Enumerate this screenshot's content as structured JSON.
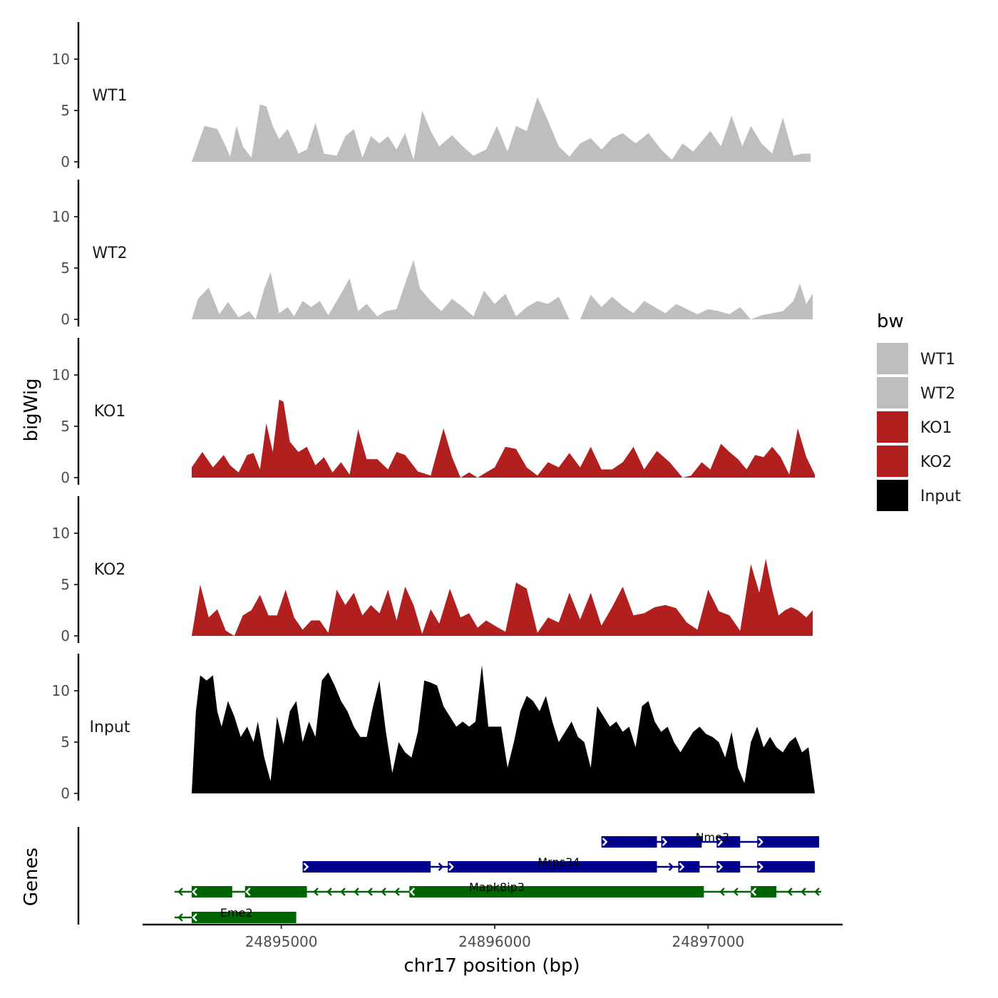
{
  "chart_data": {
    "type": "area",
    "ylabel": "bigWig",
    "genes_label": "Genes",
    "xlabel": "chr17 position (bp)",
    "xlim": [
      24894350,
      24897630
    ],
    "xticks": [
      24895000,
      24896000,
      24897000
    ],
    "xtick_labels": [
      "24895000",
      "24896000",
      "24897000"
    ],
    "ylim": [
      0,
      14
    ],
    "yticks": [
      0,
      5,
      10
    ],
    "ytick_labels": [
      "0",
      "5",
      "10"
    ],
    "legend": {
      "title": "bw",
      "position": "right",
      "entries": [
        {
          "label": "WT1",
          "color": "#bebebe"
        },
        {
          "label": "WT2",
          "color": "#bebebe"
        },
        {
          "label": "KO1",
          "color": "#b21f1f"
        },
        {
          "label": "KO2",
          "color": "#b21f1f"
        },
        {
          "label": "Input",
          "color": "#000000"
        }
      ]
    },
    "tracks": [
      {
        "name": "WT1",
        "color": "#bebebe",
        "x": [
          24894580,
          24894640,
          24894700,
          24894740,
          24894760,
          24894790,
          24894820,
          24894860,
          24894900,
          24894930,
          24894960,
          24894990,
          24895030,
          24895080,
          24895120,
          24895160,
          24895200,
          24895260,
          24895300,
          24895340,
          24895380,
          24895420,
          24895460,
          24895500,
          24895540,
          24895580,
          24895620,
          24895660,
          24895700,
          24895740,
          24895800,
          24895850,
          24895900,
          24895960,
          24896010,
          24896060,
          24896100,
          24896150,
          24896200,
          24896250,
          24896300,
          24896350,
          24896400,
          24896450,
          24896500,
          24896550,
          24896600,
          24896660,
          24896720,
          24896780,
          24896830,
          24896880,
          24896930,
          24896970,
          24897010,
          24897060,
          24897110,
          24897160,
          24897200,
          24897250,
          24897300,
          24897350,
          24897400,
          24897440,
          24897480
        ],
        "y": [
          0,
          3.5,
          3.2,
          1.5,
          0.5,
          3.5,
          1.5,
          0.4,
          5.6,
          5.4,
          3.5,
          2.2,
          3.2,
          0.8,
          1.2,
          3.8,
          0.8,
          0.6,
          2.5,
          3.2,
          0.4,
          2.5,
          1.8,
          2.5,
          1.2,
          2.8,
          0.2,
          5.0,
          3.0,
          1.5,
          2.6,
          1.5,
          0.6,
          1.2,
          3.5,
          1.0,
          3.5,
          3.0,
          6.3,
          4.0,
          1.5,
          0.5,
          1.8,
          2.3,
          1.2,
          2.3,
          2.8,
          1.8,
          2.8,
          1.2,
          0.2,
          1.8,
          1.0,
          2.0,
          3.0,
          1.5,
          4.5,
          1.5,
          3.5,
          1.8,
          0.8,
          4.3,
          0.6,
          0.8,
          0.8
        ]
      },
      {
        "name": "WT2",
        "color": "#bebebe",
        "x": [
          24894580,
          24894610,
          24894660,
          24894710,
          24894750,
          24894800,
          24894850,
          24894880,
          24894920,
          24894950,
          24894990,
          24895030,
          24895060,
          24895100,
          24895140,
          24895180,
          24895220,
          24895280,
          24895320,
          24895360,
          24895400,
          24895450,
          24895490,
          24895540,
          24895580,
          24895620,
          24895650,
          24895700,
          24895750,
          24895800,
          24895850,
          24895900,
          24895950,
          24896000,
          24896050,
          24896100,
          24896150,
          24896200,
          24896250,
          24896300,
          24896350,
          24896400,
          24896450,
          24896500,
          24896550,
          24896600,
          24896650,
          24896700,
          24896750,
          24896800,
          24896850,
          24896900,
          24896950,
          24897000,
          24897050,
          24897100,
          24897150,
          24897200,
          24897250,
          24897300,
          24897350,
          24897400,
          24897430,
          24897460,
          24897490
        ],
        "y": [
          0,
          2.0,
          3.1,
          0.5,
          1.7,
          0.2,
          0.8,
          0,
          3.0,
          4.6,
          0.6,
          1.2,
          0.3,
          1.8,
          1.2,
          1.8,
          0.4,
          2.5,
          4.0,
          0.8,
          1.5,
          0.3,
          0.8,
          1.0,
          3.5,
          5.8,
          3.0,
          1.8,
          0.8,
          2.0,
          1.2,
          0.3,
          2.8,
          1.5,
          2.5,
          0.3,
          1.2,
          1.8,
          1.5,
          2.2,
          0,
          0,
          2.4,
          1.2,
          2.2,
          1.3,
          0.6,
          1.8,
          1.2,
          0.6,
          1.5,
          1.0,
          0.5,
          1.0,
          0.8,
          0.5,
          1.2,
          0,
          0.4,
          0.6,
          0.8,
          1.8,
          3.5,
          1.5,
          2.5
        ]
      },
      {
        "name": "KO1",
        "color": "#b21f1f",
        "x": [
          24894580,
          24894630,
          24894680,
          24894730,
          24894760,
          24894800,
          24894840,
          24894870,
          24894900,
          24894930,
          24894960,
          24894990,
          24895010,
          24895040,
          24895080,
          24895120,
          24895160,
          24895200,
          24895240,
          24895280,
          24895320,
          24895360,
          24895400,
          24895450,
          24895500,
          24895540,
          24895580,
          24895640,
          24895700,
          24895760,
          24895800,
          24895840,
          24895880,
          24895920,
          24895960,
          24896000,
          24896050,
          24896100,
          24896150,
          24896200,
          24896250,
          24896300,
          24896350,
          24896400,
          24896450,
          24896500,
          24896550,
          24896600,
          24896650,
          24896700,
          24896760,
          24896820,
          24896880,
          24896920,
          24896970,
          24897010,
          24897060,
          24897100,
          24897140,
          24897180,
          24897220,
          24897260,
          24897300,
          24897340,
          24897380,
          24897420,
          24897460,
          24897500
        ],
        "y": [
          1.0,
          2.5,
          1.0,
          2.2,
          1.2,
          0.5,
          2.2,
          2.4,
          0.8,
          5.3,
          2.5,
          7.6,
          7.4,
          3.5,
          2.5,
          3.0,
          1.2,
          2.0,
          0.5,
          1.5,
          0.3,
          4.7,
          1.8,
          1.8,
          0.8,
          2.5,
          2.2,
          0.6,
          0.2,
          4.8,
          2.0,
          0,
          0.5,
          0,
          0.5,
          1.0,
          3.0,
          2.8,
          1.0,
          0.2,
          1.5,
          1.0,
          2.4,
          1.0,
          3.0,
          0.8,
          0.8,
          1.5,
          3.0,
          0.8,
          2.6,
          1.5,
          0,
          0.2,
          1.5,
          0.8,
          3.3,
          2.5,
          1.8,
          0.8,
          2.2,
          2.0,
          3.0,
          2.0,
          0.3,
          4.8,
          2.0,
          0.3
        ]
      },
      {
        "name": "KO2",
        "color": "#b21f1f",
        "x": [
          24894580,
          24894620,
          24894660,
          24894700,
          24894740,
          24894780,
          24894820,
          24894860,
          24894900,
          24894940,
          24894980,
          24895020,
          24895060,
          24895100,
          24895140,
          24895180,
          24895220,
          24895260,
          24895300,
          24895340,
          24895380,
          24895420,
          24895460,
          24895500,
          24895540,
          24895580,
          24895620,
          24895660,
          24895700,
          24895740,
          24895790,
          24895840,
          24895880,
          24895920,
          24895960,
          24896000,
          24896050,
          24896100,
          24896150,
          24896200,
          24896250,
          24896300,
          24896350,
          24896400,
          24896450,
          24896500,
          24896550,
          24896600,
          24896650,
          24896700,
          24896750,
          24896800,
          24896850,
          24896900,
          24896950,
          24897000,
          24897050,
          24897100,
          24897150,
          24897200,
          24897240,
          24897270,
          24897300,
          24897330,
          24897360,
          24897390,
          24897420,
          24897460,
          24897490
        ],
        "y": [
          0,
          5.0,
          1.8,
          2.6,
          0.5,
          0,
          2.0,
          2.5,
          4.0,
          2.0,
          2.0,
          4.5,
          1.8,
          0.6,
          1.5,
          1.5,
          0.3,
          4.5,
          3.0,
          4.2,
          2.0,
          3.0,
          2.2,
          4.5,
          1.5,
          4.8,
          3.0,
          0.2,
          2.6,
          1.2,
          4.6,
          1.8,
          2.2,
          0.8,
          1.5,
          1.0,
          0.4,
          5.2,
          4.6,
          0.3,
          1.8,
          1.3,
          4.2,
          1.6,
          4.2,
          1.0,
          2.8,
          4.8,
          2.0,
          2.2,
          2.8,
          3.0,
          2.7,
          1.3,
          0.6,
          4.5,
          2.4,
          2.0,
          0.5,
          7.0,
          4.2,
          7.5,
          4.5,
          2.0,
          2.5,
          2.8,
          2.5,
          1.8,
          2.5
        ]
      },
      {
        "name": "Input",
        "color": "#000000",
        "x": [
          24894580,
          24894600,
          24894620,
          24894650,
          24894680,
          24894700,
          24894720,
          24894750,
          24894780,
          24894810,
          24894840,
          24894870,
          24894890,
          24894920,
          24894950,
          24894980,
          24895010,
          24895040,
          24895070,
          24895100,
          24895130,
          24895160,
          24895190,
          24895220,
          24895250,
          24895280,
          24895310,
          24895340,
          24895370,
          24895400,
          24895430,
          24895460,
          24895490,
          24895520,
          24895550,
          24895580,
          24895610,
          24895640,
          24895670,
          24895700,
          24895730,
          24895760,
          24895790,
          24895820,
          24895850,
          24895880,
          24895910,
          24895940,
          24895970,
          24896000,
          24896030,
          24896060,
          24896090,
          24896120,
          24896150,
          24896180,
          24896210,
          24896240,
          24896270,
          24896300,
          24896330,
          24896360,
          24896390,
          24896420,
          24896450,
          24896480,
          24896510,
          24896540,
          24896570,
          24896600,
          24896630,
          24896660,
          24896690,
          24896720,
          24896750,
          24896780,
          24896810,
          24896840,
          24896870,
          24896900,
          24896930,
          24896960,
          24896990,
          24897020,
          24897050,
          24897080,
          24897110,
          24897140,
          24897170,
          24897200,
          24897230,
          24897260,
          24897290,
          24897320,
          24897350,
          24897380,
          24897410,
          24897440,
          24897470,
          24897500
        ],
        "y": [
          0,
          8.0,
          11.5,
          11.0,
          11.5,
          8.0,
          6.5,
          9.0,
          7.5,
          5.5,
          6.5,
          5.0,
          7.0,
          3.5,
          1.2,
          7.5,
          4.8,
          8.0,
          9.0,
          5.0,
          7.0,
          5.5,
          11.0,
          11.8,
          10.5,
          9.0,
          8.0,
          6.5,
          5.5,
          5.5,
          8.5,
          11.0,
          6.0,
          2.0,
          5.0,
          4.0,
          3.5,
          6.0,
          11.0,
          10.8,
          10.5,
          8.5,
          7.5,
          6.5,
          7.0,
          6.5,
          7.0,
          12.5,
          6.5,
          6.5,
          6.5,
          2.5,
          5.0,
          8.0,
          9.5,
          9.0,
          8.0,
          9.5,
          7.0,
          5.0,
          6.0,
          7.0,
          5.5,
          5.0,
          2.5,
          8.5,
          7.5,
          6.5,
          7.0,
          6.0,
          6.5,
          4.5,
          8.5,
          9.0,
          7.0,
          6.0,
          6.5,
          5.0,
          4.0,
          5.0,
          6.0,
          6.5,
          5.8,
          5.5,
          5.0,
          3.5,
          6.0,
          2.5,
          1.0,
          5.0,
          6.5,
          4.5,
          5.5,
          4.5,
          4.0,
          5.0,
          5.5,
          4.0,
          4.5,
          0
        ]
      }
    ],
    "genes": [
      {
        "name": "Nme3",
        "strand": "+",
        "color": "#00008b",
        "row": 0,
        "label_x": 24897020,
        "start": 24896500,
        "end": 24897520,
        "exons": [
          [
            24896500,
            24896760
          ],
          [
            24896780,
            24896970
          ],
          [
            24897040,
            24897150
          ],
          [
            24897230,
            24897520
          ]
        ]
      },
      {
        "name": "Mrps34",
        "strand": "+",
        "color": "#00008b",
        "row": 1,
        "label_x": 24896300,
        "start": 24895100,
        "end": 24897500,
        "exons": [
          [
            24895100,
            24895700
          ],
          [
            24895780,
            24896760
          ],
          [
            24896860,
            24896960
          ],
          [
            24897040,
            24897150
          ],
          [
            24897230,
            24897500
          ]
        ]
      },
      {
        "name": "Mapk8ip3",
        "strand": "-",
        "color": "#006400",
        "row": 2,
        "label_x": 24896010,
        "start": 24894500,
        "end": 24897530,
        "exons": [
          [
            24894580,
            24894770
          ],
          [
            24894830,
            24895120
          ],
          [
            24895600,
            24896980
          ],
          [
            24897200,
            24897320
          ]
        ]
      },
      {
        "name": "Eme2",
        "strand": "-",
        "color": "#006400",
        "row": 3,
        "label_x": 24894790,
        "start": 24894500,
        "end": 24895070,
        "exons": [
          [
            24894580,
            24895070
          ]
        ]
      }
    ]
  }
}
